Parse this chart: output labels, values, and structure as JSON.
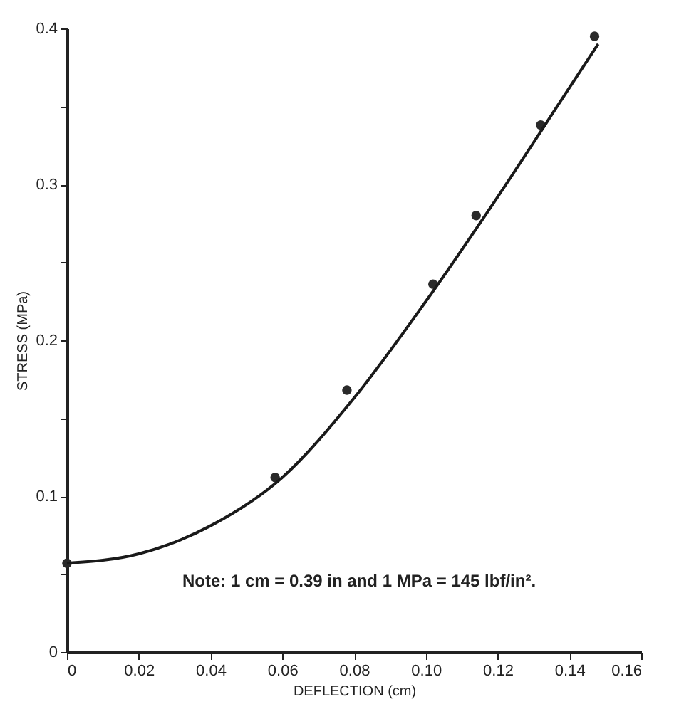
{
  "chart_data": {
    "type": "scatter",
    "xlabel": "DEFLECTION (cm)",
    "ylabel": "STRESS (MPa)",
    "annotations": [
      "Note:  1 cm = 0.39 in and 1 MPa = 145 lbf/in²."
    ],
    "series": [
      {
        "color": "#2a2a2a",
        "marker": "circle",
        "x": [
          0,
          0.058,
          0.078,
          0.102,
          0.114,
          0.132,
          0.147
        ],
        "values": [
          0.057,
          0.112,
          0.168,
          0.236,
          0.28,
          0.338,
          0.395
        ]
      },
      {
        "type": "line",
        "color": "#1a1a1a",
        "marker": "none",
        "x": [
          0,
          0.02,
          0.04,
          0.06,
          0.08,
          0.1,
          0.12,
          0.14,
          0.148
        ],
        "values": [
          0.057,
          0.063,
          0.081,
          0.112,
          0.163,
          0.225,
          0.292,
          0.362,
          0.39
        ]
      }
    ],
    "xlim": [
      0,
      0.16
    ],
    "ylim": [
      0,
      0.4
    ],
    "xticks": [
      0,
      {
        "value": 0.02,
        "label": "0.02"
      },
      {
        "value": 0.04,
        "label": "0.04"
      },
      {
        "value": 0.06,
        "label": "0.06"
      },
      {
        "value": 0.08,
        "label": "0.08"
      },
      {
        "value": 0.1,
        "label": "0.10"
      },
      {
        "value": 0.12,
        "label": "0.12"
      },
      {
        "value": 0.14,
        "label": "0.14"
      },
      {
        "value": 0.16,
        "label": "0.16"
      }
    ],
    "yticks": [
      0,
      {
        "value": 0.05,
        "label": null
      },
      0.1,
      {
        "value": 0.15,
        "label": null
      },
      0.2,
      {
        "value": 0.25,
        "label": null
      },
      0.3,
      {
        "value": 0.35,
        "label": null
      },
      0.4
    ],
    "grid": false
  }
}
